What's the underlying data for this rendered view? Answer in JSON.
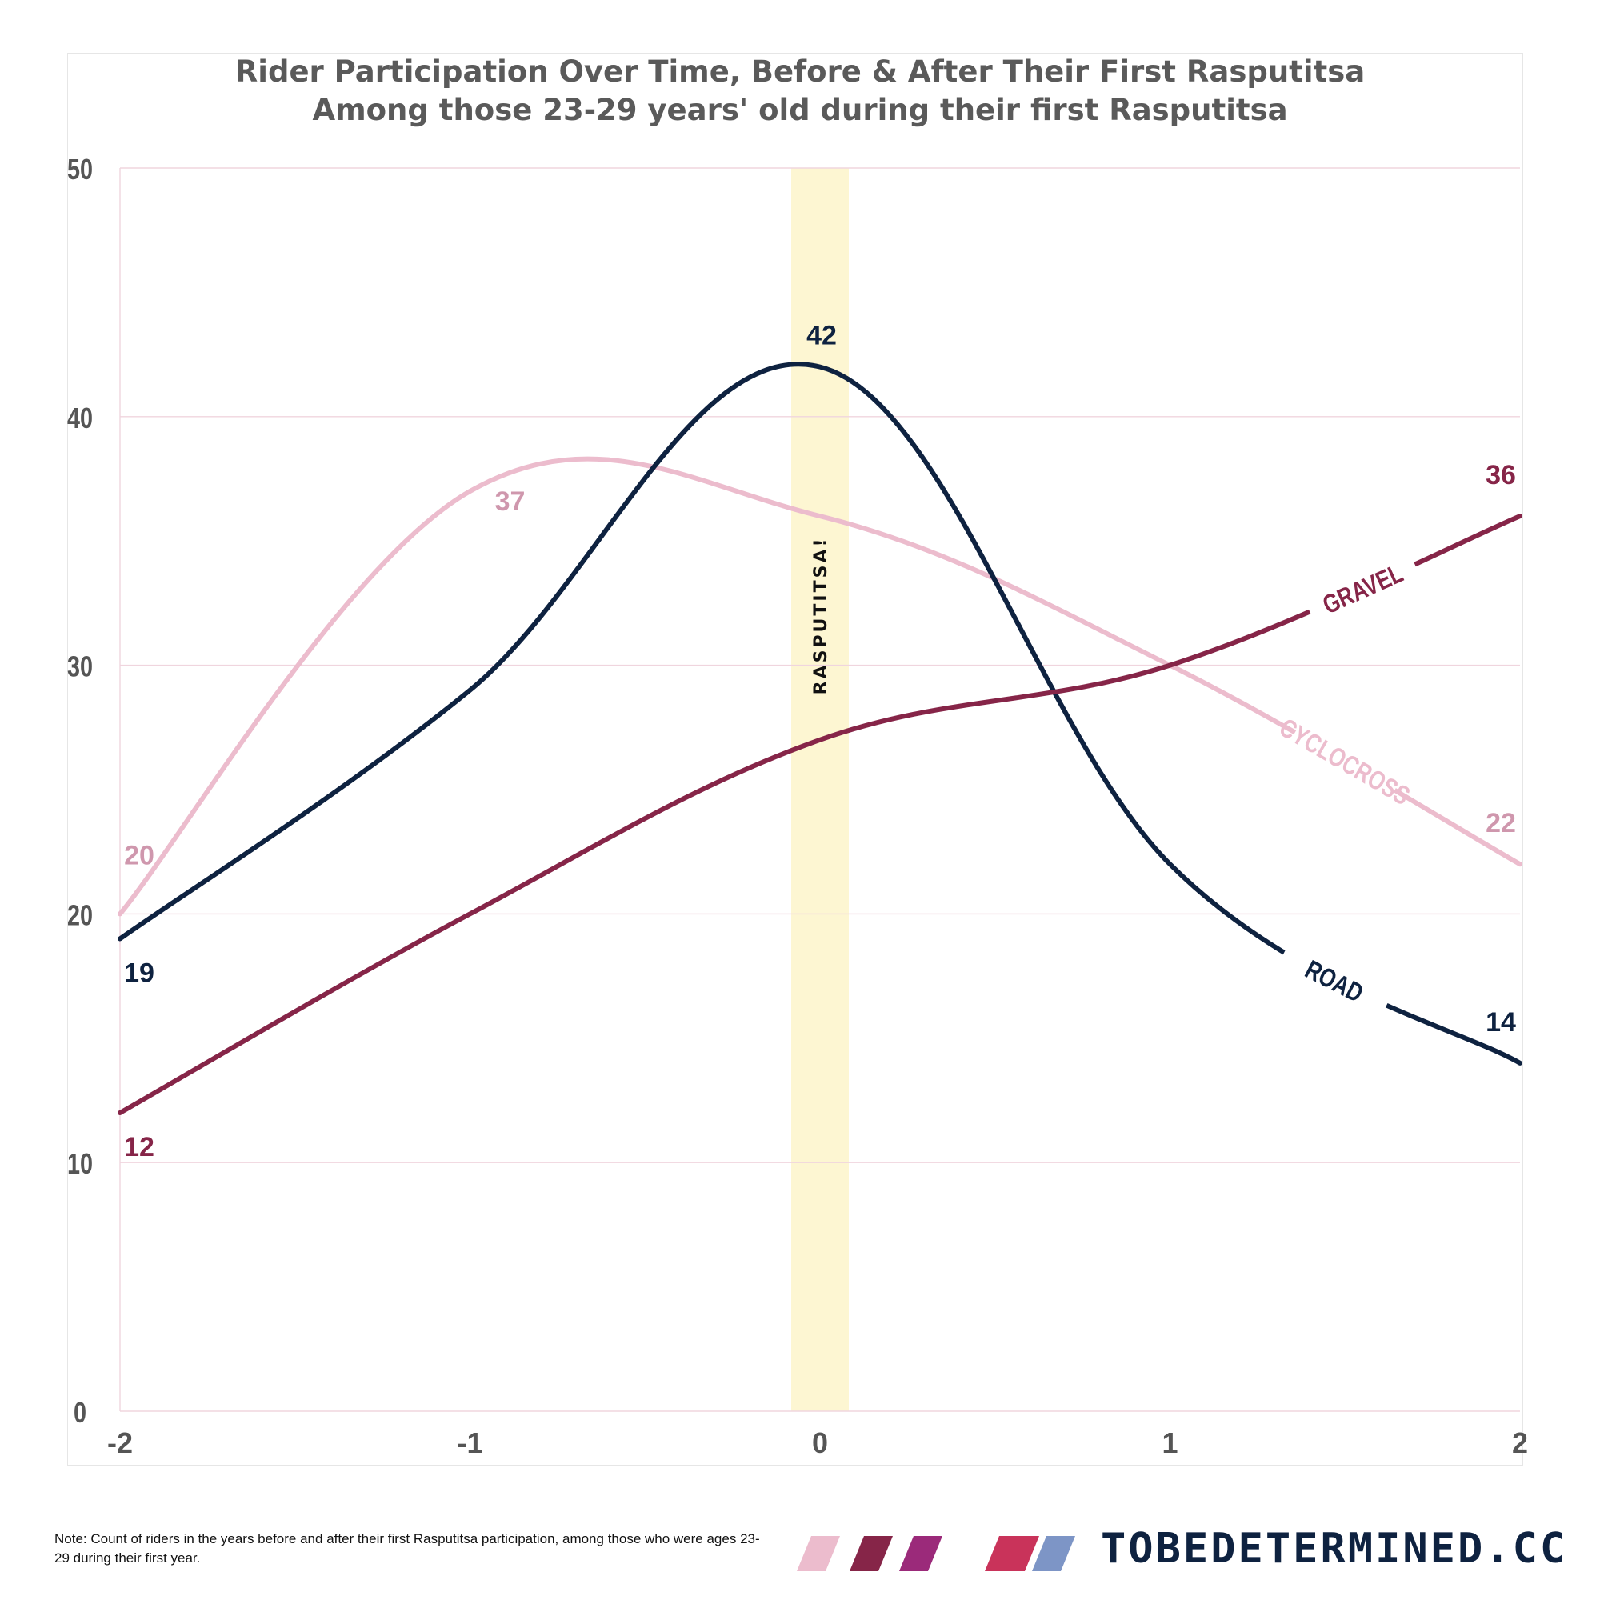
{
  "chart_data": {
    "type": "line",
    "title": "Rider Participation Over Time, Before & After Their First Rasputitsa",
    "subtitle": "Among those 23-29 years' old during their first Rasputitsa",
    "x": [
      -2,
      -1,
      0,
      1,
      2
    ],
    "x_ticks": [
      "-2",
      "-1",
      "0",
      "1",
      "2"
    ],
    "y_ticks": [
      "0",
      "10",
      "20",
      "30",
      "40",
      "50"
    ],
    "ylim": [
      0,
      50
    ],
    "xlim": [
      -2,
      2
    ],
    "grid": true,
    "highlight": {
      "x": 0,
      "label": "RASPUTITSA!",
      "color": "#fdf6d2"
    },
    "series": [
      {
        "name": "CYCLOCROSS",
        "color": "#ecbccd",
        "label_color": "#cf97ad",
        "values": [
          20,
          37,
          36,
          30,
          22
        ],
        "start_label": "20",
        "end_label": "22",
        "peak_label": "37",
        "peak_x": -1
      },
      {
        "name": "ROAD",
        "color": "#0e2240",
        "label_color": "#0e2240",
        "values": [
          19,
          29,
          42,
          22,
          14
        ],
        "start_label": "19",
        "end_label": "14",
        "peak_label": "42",
        "peak_x": 0
      },
      {
        "name": "GRAVEL",
        "color": "#862548",
        "label_color": "#862548",
        "values": [
          12,
          20,
          27,
          30,
          36
        ],
        "start_label": "12",
        "end_label": "36"
      }
    ]
  },
  "note": "Note: Count of riders in the years before and after their first Rasputitsa participation, among those who were ages 23-29 during their first year.",
  "brand": {
    "text": "TOBEDETERMINED.CC",
    "stripe_colors": [
      "#ecbccd",
      "#862548",
      "#9b2a7a",
      "#c9335a",
      "#7d95c6"
    ]
  }
}
